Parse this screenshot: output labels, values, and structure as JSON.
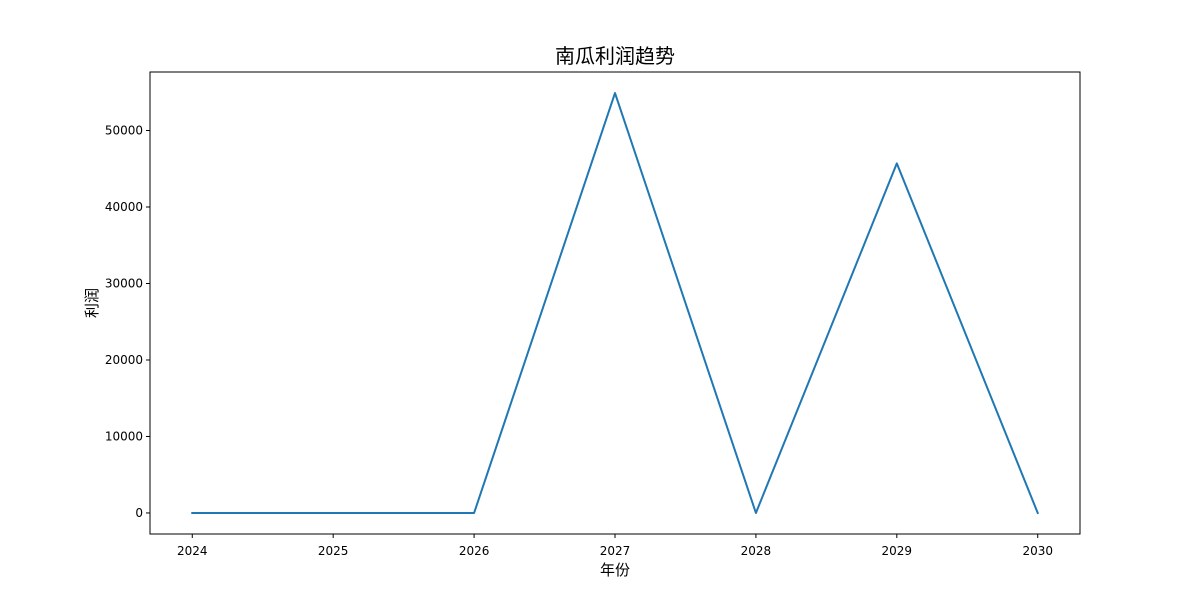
{
  "chart_data": {
    "type": "line",
    "title": "南瓜利润趋势",
    "xlabel": "年份",
    "ylabel": "利润",
    "x": [
      2024,
      2025,
      2026,
      2027,
      2028,
      2029,
      2030
    ],
    "x_tick_labels": [
      "2024",
      "2025",
      "2026",
      "2027",
      "2028",
      "2029",
      "2030"
    ],
    "y_ticks": [
      0,
      10000,
      20000,
      30000,
      40000,
      50000
    ],
    "y_tick_labels": [
      "0",
      "10000",
      "20000",
      "30000",
      "40000",
      "50000"
    ],
    "xlim": [
      2023.7,
      2030.3
    ],
    "ylim": [
      -2750,
      57650
    ],
    "series": [
      {
        "values": [
          0,
          0,
          0,
          54900,
          0,
          45700,
          0
        ],
        "color": "#1f77b4"
      }
    ],
    "grid": false,
    "legend": "none"
  }
}
